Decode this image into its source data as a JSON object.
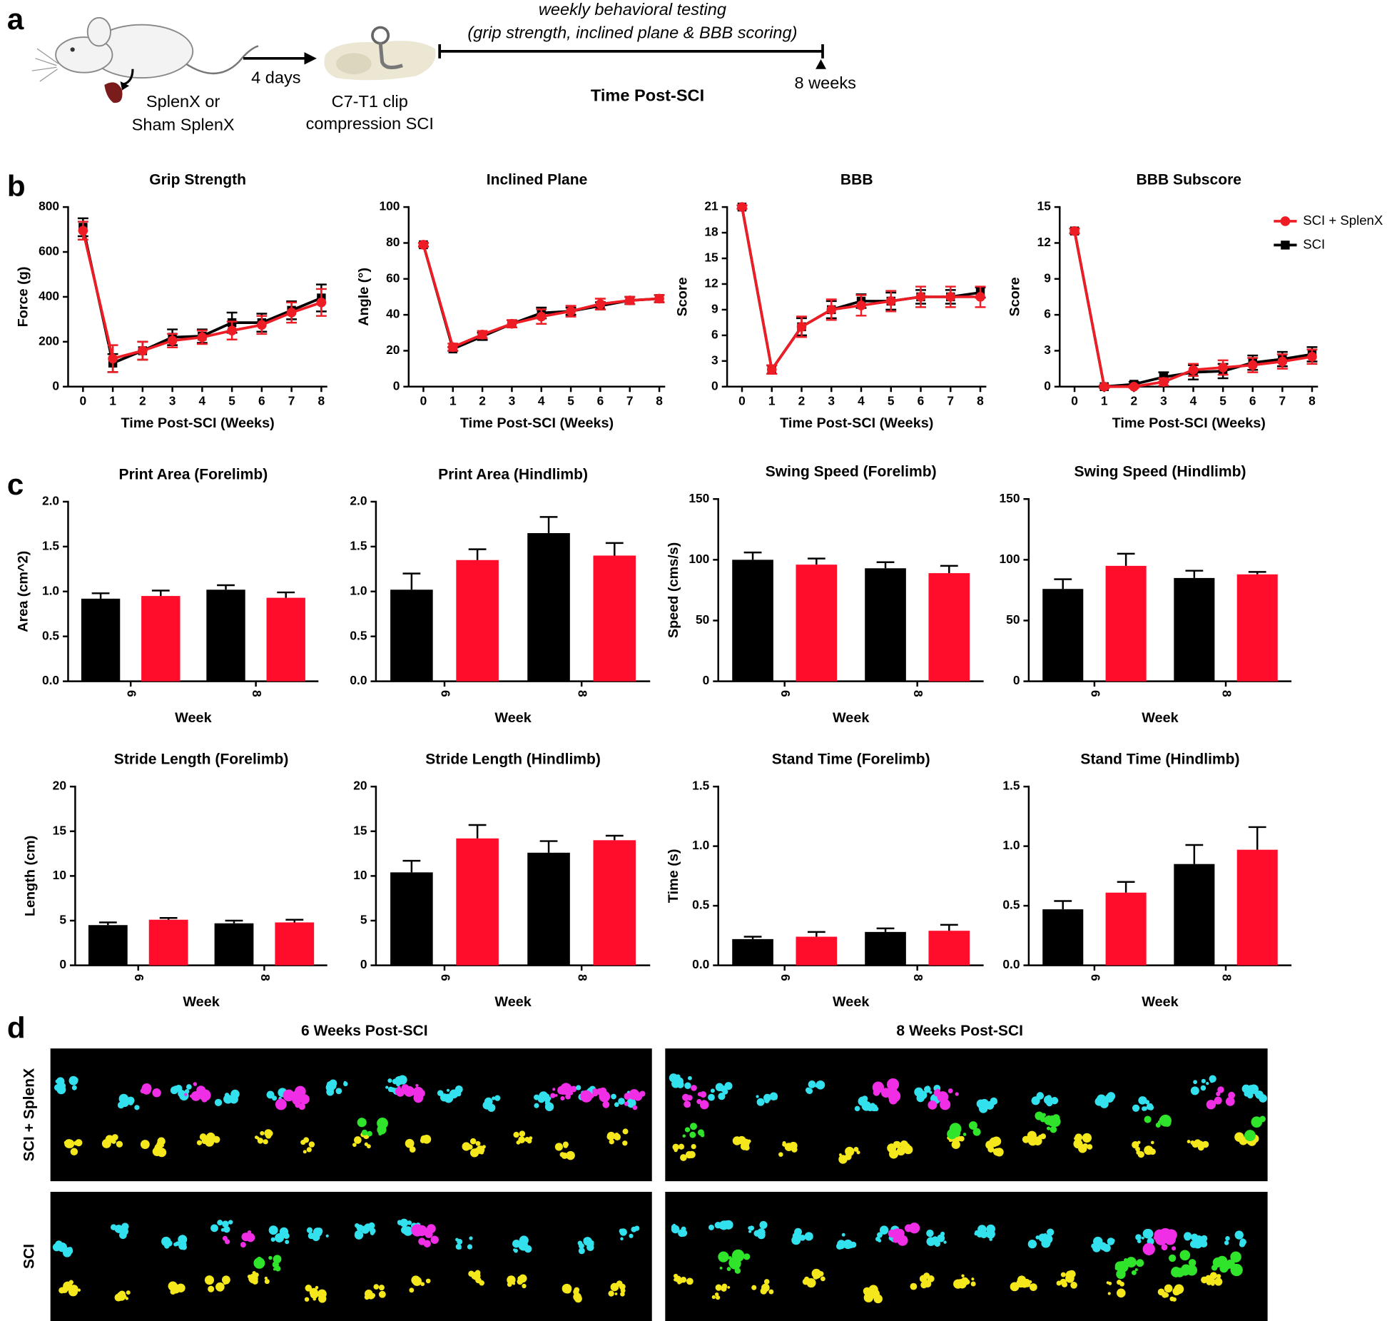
{
  "panel_labels": [
    "a",
    "b",
    "c",
    "d"
  ],
  "schematic": {
    "surgery": [
      "SplenX or",
      "Sham SplenX"
    ],
    "interval": "4 days",
    "injury": [
      "C7-T1 clip",
      "compression SCI"
    ],
    "testing": [
      "weekly behavioral testing",
      "(grip strength, inclined plane & BBB scoring)"
    ],
    "timeline_label": "Time Post-SCI",
    "endpoint": "8 weeks"
  },
  "footprints": {
    "columns": [
      "6 Weeks Post-SCI",
      "8 Weeks Post-SCI"
    ],
    "rows": [
      "SCI + SplenX",
      "SCI"
    ]
  },
  "chart_data": [
    {
      "type": "line",
      "title": "Grip Strength",
      "xlabel": "Time Post-SCI (Weeks)",
      "ylabel": "Force (g)",
      "x": [
        0,
        1,
        2,
        3,
        4,
        5,
        6,
        7,
        8
      ],
      "xlim": [
        -0.5,
        8.2
      ],
      "xticks": [
        0,
        1,
        2,
        3,
        4,
        5,
        6,
        7,
        8
      ],
      "ylim": [
        0,
        800
      ],
      "yticks": [
        0,
        200,
        400,
        600,
        800
      ],
      "series": [
        {
          "color": "#000000",
          "marker": "square",
          "values": [
            710,
            105,
            160,
            220,
            225,
            285,
            285,
            340,
            395
          ],
          "errors": [
            40,
            40,
            40,
            35,
            30,
            45,
            40,
            40,
            60
          ]
        },
        {
          "color": "#ee1c25",
          "marker": "circle",
          "values": [
            695,
            125,
            160,
            205,
            220,
            250,
            275,
            330,
            375
          ],
          "errors": [
            40,
            60,
            40,
            30,
            30,
            40,
            40,
            45,
            60
          ]
        }
      ]
    },
    {
      "type": "line",
      "title": "Inclined Plane",
      "xlabel": "Time Post-SCI (Weeks)",
      "ylabel": "Angle (°)",
      "x": [
        0,
        1,
        2,
        3,
        4,
        5,
        6,
        7,
        8
      ],
      "xlim": [
        -0.5,
        8.2
      ],
      "xticks": [
        0,
        1,
        2,
        3,
        4,
        5,
        6,
        7,
        8
      ],
      "ylim": [
        0,
        100
      ],
      "yticks": [
        0,
        20,
        40,
        60,
        80,
        100
      ],
      "series": [
        {
          "color": "#000000",
          "marker": "square",
          "values": [
            79,
            21,
            28,
            35,
            41,
            42,
            45,
            48,
            49
          ],
          "errors": [
            1,
            1,
            2,
            2,
            3,
            2,
            2,
            2,
            2
          ]
        },
        {
          "color": "#ee1c25",
          "marker": "circle",
          "values": [
            79,
            22,
            29,
            35,
            39,
            42,
            46,
            48,
            49
          ],
          "errors": [
            1,
            2,
            2,
            2,
            4,
            3,
            3,
            2,
            2
          ]
        }
      ]
    },
    {
      "type": "line",
      "title": "BBB",
      "xlabel": "Time Post-SCI (Weeks)",
      "ylabel": "Score",
      "x": [
        0,
        1,
        2,
        3,
        4,
        5,
        6,
        7,
        8
      ],
      "xlim": [
        -0.5,
        8.2
      ],
      "xticks": [
        0,
        1,
        2,
        3,
        4,
        5,
        6,
        7,
        8
      ],
      "ylim": [
        0,
        21
      ],
      "yticks": [
        0,
        3,
        6,
        9,
        12,
        15,
        18,
        21
      ],
      "series": [
        {
          "color": "#000000",
          "marker": "square",
          "values": [
            21,
            2,
            7,
            9,
            10,
            10,
            10.5,
            10.5,
            11
          ],
          "errors": [
            0.2,
            0.5,
            1,
            1,
            0.8,
            1,
            0.8,
            0.8,
            0.6
          ]
        },
        {
          "color": "#ee1c25",
          "marker": "circle",
          "values": [
            21,
            2,
            7,
            9,
            9.5,
            10,
            10.5,
            10.5,
            10.5
          ],
          "errors": [
            0.2,
            0.5,
            1.2,
            1.2,
            1.2,
            1.2,
            1.2,
            1.2,
            1.2
          ]
        }
      ]
    },
    {
      "type": "line",
      "title": "BBB Subscore",
      "xlabel": "Time Post-SCI (Weeks)",
      "ylabel": "Score",
      "legend": "upper right",
      "x": [
        0,
        1,
        2,
        3,
        4,
        5,
        6,
        7,
        8
      ],
      "xlim": [
        -0.5,
        8.2
      ],
      "xticks": [
        0,
        1,
        2,
        3,
        4,
        5,
        6,
        7,
        8
      ],
      "ylim": [
        0,
        15
      ],
      "yticks": [
        0,
        3,
        6,
        9,
        12,
        15
      ],
      "series": [
        {
          "name": "SCI",
          "color": "#000000",
          "marker": "square",
          "values": [
            13,
            0,
            0.2,
            0.8,
            1.2,
            1.3,
            2,
            2.3,
            2.7
          ],
          "errors": [
            0.2,
            0.1,
            0.2,
            0.4,
            0.6,
            0.6,
            0.6,
            0.6,
            0.6
          ]
        },
        {
          "name": "SCI + SplenX",
          "color": "#ee1c25",
          "marker": "circle",
          "values": [
            13,
            0,
            0,
            0.4,
            1.4,
            1.6,
            1.8,
            2.1,
            2.5
          ],
          "errors": [
            0.2,
            0.1,
            0.1,
            0.3,
            0.5,
            0.6,
            0.6,
            0.6,
            0.6
          ]
        }
      ]
    },
    {
      "type": "bar",
      "title": "Print Area (Forelimb)",
      "xlabel": "Week",
      "ylabel": "Area (cm^2)",
      "categories": [
        "6",
        "8"
      ],
      "ylim": [
        0,
        2
      ],
      "yticks": [
        {
          "value": 0,
          "label": "0.0"
        },
        0.5,
        {
          "value": 1,
          "label": "1.0"
        },
        1.5,
        {
          "value": 2,
          "label": "2.0"
        }
      ],
      "series": [
        {
          "color": "#000000",
          "values": [
            0.92,
            1.02
          ],
          "errors": [
            0.06,
            0.05
          ]
        },
        {
          "color": "#ff0d2a",
          "values": [
            0.95,
            0.93
          ],
          "errors": [
            0.06,
            0.06
          ]
        }
      ]
    },
    {
      "type": "bar",
      "title": "Print Area (Hindlimb)",
      "xlabel": "Week",
      "ylabel": "",
      "categories": [
        "6",
        "8"
      ],
      "ylim": [
        0,
        2
      ],
      "yticks": [
        {
          "value": 0,
          "label": "0.0"
        },
        0.5,
        {
          "value": 1,
          "label": "1.0"
        },
        1.5,
        {
          "value": 2,
          "label": "2.0"
        }
      ],
      "series": [
        {
          "color": "#000000",
          "values": [
            1.02,
            1.65
          ],
          "errors": [
            0.18,
            0.18
          ]
        },
        {
          "color": "#ff0d2a",
          "values": [
            1.35,
            1.4
          ],
          "errors": [
            0.12,
            0.14
          ]
        }
      ]
    },
    {
      "type": "bar",
      "title": "Swing Speed (Forelimb)",
      "xlabel": "Week",
      "ylabel": "Speed (cms/s)",
      "categories": [
        "6",
        "8"
      ],
      "ylim": [
        0,
        150
      ],
      "yticks": [
        0,
        50,
        100,
        150
      ],
      "series": [
        {
          "color": "#000000",
          "values": [
            100,
            93
          ],
          "errors": [
            6,
            5
          ]
        },
        {
          "color": "#ff0d2a",
          "values": [
            96,
            89
          ],
          "errors": [
            5,
            6
          ]
        }
      ]
    },
    {
      "type": "bar",
      "title": "Swing Speed (Hindlimb)",
      "xlabel": "Week",
      "categories": [
        "6",
        "8"
      ],
      "ylim": [
        0,
        150
      ],
      "yticks": [
        0,
        50,
        100,
        150
      ],
      "series": [
        {
          "color": "#000000",
          "values": [
            76,
            85
          ],
          "errors": [
            8,
            6
          ]
        },
        {
          "color": "#ff0d2a",
          "values": [
            95,
            88
          ],
          "errors": [
            10,
            2
          ]
        }
      ]
    },
    {
      "type": "bar",
      "title": "Stride Length (Forelimb)",
      "xlabel": "Week",
      "ylabel": "Length (cm)",
      "categories": [
        "6",
        "8"
      ],
      "ylim": [
        0,
        20
      ],
      "yticks": [
        0,
        5,
        10,
        15,
        20
      ],
      "series": [
        {
          "color": "#000000",
          "values": [
            4.5,
            4.7
          ],
          "errors": [
            0.3,
            0.3
          ]
        },
        {
          "color": "#ff0d2a",
          "values": [
            5.1,
            4.8
          ],
          "errors": [
            0.2,
            0.3
          ]
        }
      ]
    },
    {
      "type": "bar",
      "title": "Stride Length (Hindlimb)",
      "xlabel": "Week",
      "categories": [
        "6",
        "8"
      ],
      "ylim": [
        0,
        20
      ],
      "yticks": [
        0,
        5,
        10,
        15,
        20
      ],
      "series": [
        {
          "color": "#000000",
          "values": [
            10.4,
            12.6
          ],
          "errors": [
            1.3,
            1.3
          ]
        },
        {
          "color": "#ff0d2a",
          "values": [
            14.2,
            14.0
          ],
          "errors": [
            1.5,
            0.5
          ]
        }
      ]
    },
    {
      "type": "bar",
      "title": "Stand Time (Forelimb)",
      "xlabel": "Week",
      "ylabel": "Time (s)",
      "categories": [
        "6",
        "8"
      ],
      "ylim": [
        0,
        1.5
      ],
      "yticks": [
        {
          "value": 0,
          "label": "0.0"
        },
        0.5,
        {
          "value": 1,
          "label": "1.0"
        },
        1.5
      ],
      "series": [
        {
          "color": "#000000",
          "values": [
            0.22,
            0.28
          ],
          "errors": [
            0.02,
            0.03
          ]
        },
        {
          "color": "#ff0d2a",
          "values": [
            0.24,
            0.29
          ],
          "errors": [
            0.04,
            0.05
          ]
        }
      ]
    },
    {
      "type": "bar",
      "title": "Stand Time (Hindlimb)",
      "xlabel": "Week",
      "categories": [
        "6",
        "8"
      ],
      "ylim": [
        0,
        1.5
      ],
      "yticks": [
        {
          "value": 0,
          "label": "0.0"
        },
        0.5,
        {
          "value": 1,
          "label": "1.0"
        },
        1.5
      ],
      "series": [
        {
          "color": "#000000",
          "values": [
            0.47,
            0.85
          ],
          "errors": [
            0.07,
            0.16
          ]
        },
        {
          "color": "#ff0d2a",
          "values": [
            0.61,
            0.97
          ],
          "errors": [
            0.09,
            0.19
          ]
        }
      ]
    }
  ]
}
